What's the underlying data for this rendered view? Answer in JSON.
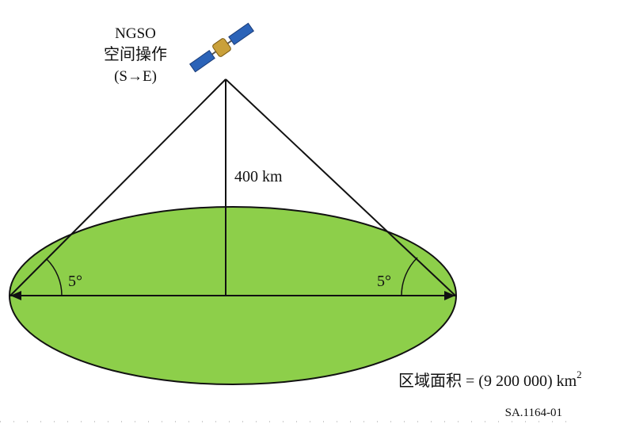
{
  "satellite": {
    "name": "NGSO",
    "label": "空间操作",
    "direction": "(S→E)"
  },
  "height_label": "400 km",
  "angle_left": "5°",
  "angle_right": "5°",
  "area": {
    "label": "区域面积 = (9 200 000) km",
    "exponent": "2"
  },
  "figure_id": "SA.1164-01"
}
